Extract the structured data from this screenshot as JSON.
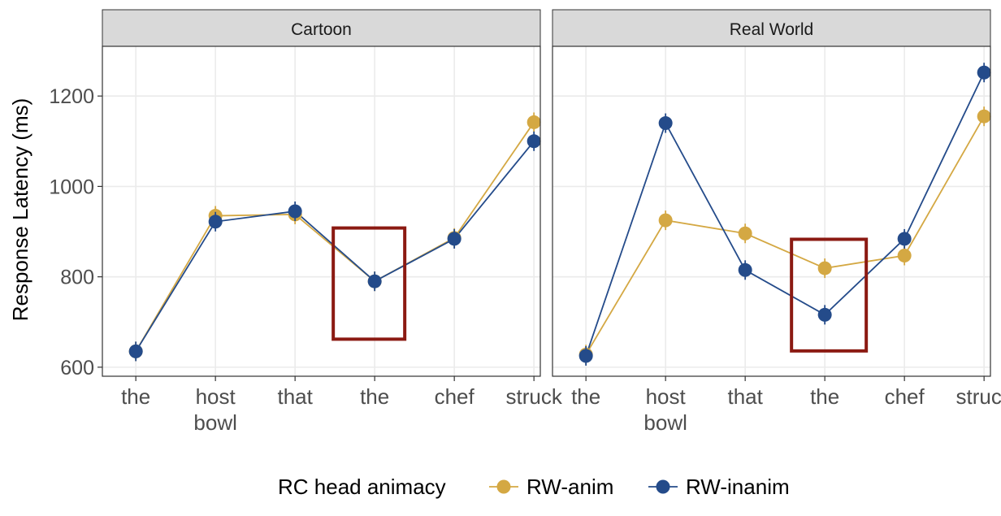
{
  "chart_data": {
    "type": "line",
    "ylabel": "Response Latency (ms)",
    "ylim": [
      580,
      1310
    ],
    "yticks": [
      600,
      800,
      1000,
      1200
    ],
    "categories": [
      [
        "the"
      ],
      [
        "host",
        "bowl"
      ],
      [
        "that"
      ],
      [
        "the"
      ],
      [
        "chef"
      ],
      [
        "struck"
      ]
    ],
    "legend": {
      "title": "RC head animacy",
      "position": "bottom"
    },
    "series_styles": [
      {
        "name": "RW-anim",
        "color": "#D4A843"
      },
      {
        "name": "RW-inanim",
        "color": "#244B8A"
      }
    ],
    "highlight_color": "#8B1A12",
    "panels": [
      {
        "title": "Cartoon",
        "highlight_category_index": 3,
        "highlight_yrange": [
          662,
          908
        ],
        "series": [
          {
            "name": "RW-anim",
            "values": [
              635,
              935,
              938,
              790,
              886,
              1142
            ]
          },
          {
            "name": "RW-inanim",
            "values": [
              635,
              922,
              945,
              790,
              884,
              1100
            ]
          }
        ]
      },
      {
        "title": "Real World",
        "highlight_category_index": 3,
        "highlight_yrange": [
          636,
          883
        ],
        "series": [
          {
            "name": "RW-anim",
            "values": [
              628,
              925,
              896,
              819,
              847,
              1155
            ]
          },
          {
            "name": "RW-inanim",
            "values": [
              625,
              1140,
              815,
              716,
              884,
              1252
            ]
          }
        ]
      }
    ]
  }
}
